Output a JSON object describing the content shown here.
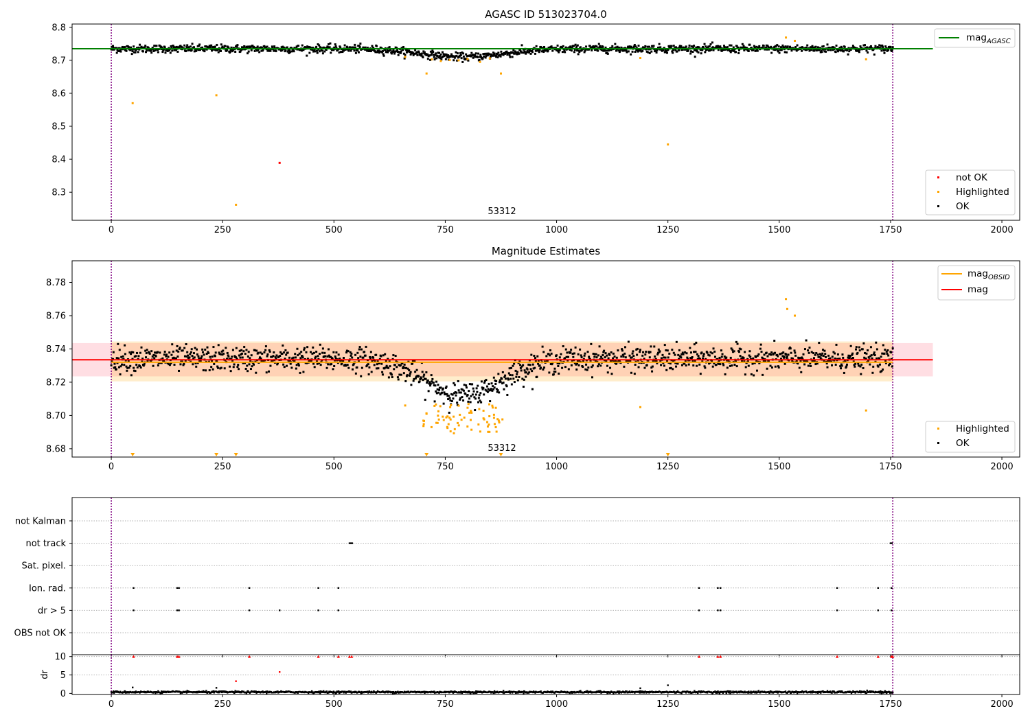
{
  "chart_data": [
    {
      "type": "scatter",
      "title": "AGASC ID 513023704.0",
      "xlim": [
        -88,
        2040
      ],
      "ylim": [
        8.215,
        8.81
      ],
      "xticks": [
        0,
        250,
        500,
        750,
        1000,
        1250,
        1500,
        1750,
        2000
      ],
      "yticks": [
        8.3,
        8.4,
        8.5,
        8.6,
        8.7,
        8.8
      ],
      "ytick_labels": [
        "8.3",
        "8.4",
        "8.5",
        "8.6",
        "8.7",
        "8.8"
      ],
      "annotation": "53312",
      "annotation_x": 875,
      "vlines": [
        0,
        1755
      ],
      "lines": [
        {
          "name": "mag",
          "subscript": "AGASC",
          "y": 8.735,
          "x": [
            -88,
            1845
          ],
          "color": "#008000"
        }
      ],
      "legend_lines": [
        {
          "name": "mag",
          "subscript": "AGASC",
          "color": "#008000"
        }
      ],
      "legend_points": [
        {
          "name": "not OK",
          "color": "#ff0000"
        },
        {
          "name": "Highlighted",
          "color": "#ffa500"
        },
        {
          "name": "OK",
          "color": "#000000"
        }
      ],
      "series": [
        {
          "name": "not OK",
          "color": "#ff0000",
          "x": [
            378
          ],
          "y": [
            8.389
          ]
        },
        {
          "name": "Highlighted",
          "color": "#ffa500",
          "x": [
            48,
            236,
            280,
            660,
            708,
            720,
            740,
            760,
            780,
            800,
            828,
            850,
            875,
            1188,
            1250,
            1515,
            1535,
            1695
          ],
          "y": [
            8.57,
            8.594,
            8.262,
            8.71,
            8.66,
            8.703,
            8.698,
            8.701,
            8.7,
            8.704,
            8.695,
            8.706,
            8.66,
            8.707,
            8.445,
            8.769,
            8.759,
            8.703
          ]
        }
      ],
      "ok_series": {
        "name": "OK",
        "color": "#000000",
        "x_start": 0,
        "x_end": 1755,
        "count": 1400,
        "baseline": 8.735,
        "scatter": 0.012,
        "dip_center": 790,
        "dip_width": 130,
        "dip_depth": 0.025
      }
    },
    {
      "type": "scatter",
      "title": "Magnitude Estimates",
      "xlim": [
        -88,
        2040
      ],
      "ylim": [
        8.675,
        8.793
      ],
      "xticks": [
        0,
        250,
        500,
        750,
        1000,
        1250,
        1500,
        1750,
        2000
      ],
      "yticks": [
        8.68,
        8.7,
        8.72,
        8.74,
        8.76,
        8.78
      ],
      "ytick_labels": [
        "8.68",
        "8.70",
        "8.72",
        "8.74",
        "8.76",
        "8.78"
      ],
      "annotation": "53312",
      "annotation_x": 875,
      "vlines": [
        0,
        1755
      ],
      "bands": [
        {
          "y0": 8.7235,
          "y1": 8.7435,
          "x": [
            -88,
            1845
          ],
          "color": "#ffb6c1",
          "opacity": 0.45
        },
        {
          "y0": 8.7205,
          "y1": 8.7445,
          "x": [
            0,
            1755
          ],
          "color": "#ffa500",
          "opacity": 0.2
        }
      ],
      "lines": [
        {
          "name": "mag",
          "subscript": "OBSID",
          "y": 8.732,
          "x": [
            0,
            1755
          ],
          "color": "#ffa500"
        },
        {
          "name": "mag",
          "subscript": "",
          "y": 8.7335,
          "x": [
            -88,
            1845
          ],
          "color": "#ff0000"
        }
      ],
      "legend_lines": [
        {
          "name": "mag",
          "subscript": "OBSID",
          "color": "#ffa500"
        },
        {
          "name": "mag",
          "subscript": "",
          "color": "#ff0000"
        }
      ],
      "legend_points": [
        {
          "name": "Highlighted",
          "color": "#ffa500"
        },
        {
          "name": "OK",
          "color": "#000000"
        }
      ],
      "series": [
        {
          "name": "Highlighted",
          "color": "#ffa500",
          "x": [
            660,
            708,
            1188,
            1515,
            1518,
            1535,
            1695
          ],
          "y": [
            8.706,
            8.701,
            8.705,
            8.77,
            8.764,
            8.76,
            8.703
          ]
        }
      ],
      "highlight_cluster": {
        "x_start": 700,
        "x_end": 880,
        "count": 70,
        "y_min": 8.689,
        "y_max": 8.707,
        "color": "#ffa500"
      },
      "markers": {
        "x": [
          48,
          236,
          280,
          708,
          875,
          1250
        ],
        "color": "#ffa500"
      },
      "ok_series": {
        "name": "OK",
        "color": "#000000",
        "x_start": 0,
        "x_end": 1755,
        "count": 1400,
        "baseline": 8.734,
        "scatter": 0.0075,
        "dip_center": 790,
        "dip_width": 120,
        "dip_depth": 0.022
      }
    },
    {
      "type": "scatter",
      "title": "",
      "xlim": [
        -88,
        2040
      ],
      "flag_labels": [
        "not Kalman",
        "not track",
        "Sat. pixel.",
        "Ion. rad.",
        "dr > 5",
        "OBS not OK"
      ],
      "vlines": [
        0,
        1755
      ],
      "flags": [
        {
          "label": "not Kalman",
          "x": []
        },
        {
          "label": "not track",
          "x": [
            535,
            538,
            541,
            1750,
            1753
          ]
        },
        {
          "label": "Sat. pixel.",
          "x": []
        },
        {
          "label": "Ion. rad.",
          "x": [
            50,
            148,
            152,
            310,
            465,
            510,
            1320,
            1362,
            1368,
            1630,
            1722,
            1752
          ]
        },
        {
          "label": "dr > 5",
          "x": [
            50,
            148,
            152,
            310,
            378,
            465,
            510,
            1320,
            1362,
            1368,
            1630,
            1722,
            1752
          ]
        },
        {
          "label": "OBS not OK",
          "x": []
        }
      ]
    },
    {
      "type": "scatter",
      "title": "",
      "ylabel": "dr",
      "xlim": [
        -88,
        2040
      ],
      "ylim": [
        -0.3,
        10.5
      ],
      "xticks": [
        0,
        250,
        500,
        750,
        1000,
        1250,
        1500,
        1750,
        2000
      ],
      "yticks": [
        0,
        5,
        10
      ],
      "ytick_labels": [
        "0",
        "5",
        "10"
      ],
      "vlines": [
        0,
        1755
      ],
      "capped": {
        "color": "#ff0000",
        "y": 10,
        "x": [
          50,
          148,
          152,
          310,
          465,
          510,
          535,
          540,
          1320,
          1362,
          1368,
          1630,
          1722,
          1752,
          1755
        ]
      },
      "outliers": [
        {
          "x": 280,
          "y": 3.3,
          "color": "#ff0000"
        },
        {
          "x": 378,
          "y": 5.8,
          "color": "#ff0000"
        },
        {
          "x": 48,
          "y": 1.6,
          "color": "#000000"
        },
        {
          "x": 236,
          "y": 1.5,
          "color": "#000000"
        },
        {
          "x": 1188,
          "y": 1.4,
          "color": "#000000"
        },
        {
          "x": 1250,
          "y": 2.2,
          "color": "#000000"
        }
      ],
      "ok_series": {
        "name": "OK",
        "color": "#000000",
        "x_start": 0,
        "x_end": 1755,
        "count": 1400,
        "y_mean": 0.35,
        "scatter": 0.25
      }
    }
  ]
}
